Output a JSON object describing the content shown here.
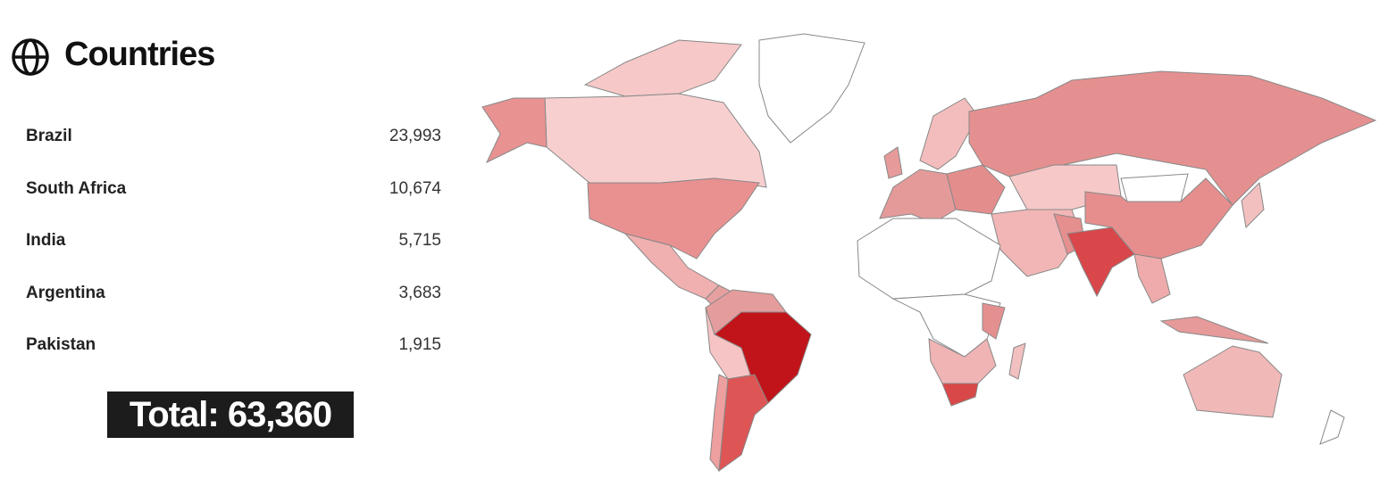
{
  "header": {
    "title": "Countries"
  },
  "table": {
    "rows": [
      [
        "Brazil",
        "23,993"
      ],
      [
        "South Africa",
        "10,674"
      ],
      [
        "India",
        "5,715"
      ],
      [
        "Argentina",
        "3,683"
      ],
      [
        "Pakistan",
        "1,915"
      ]
    ]
  },
  "total": "Total: 63,360"
}
